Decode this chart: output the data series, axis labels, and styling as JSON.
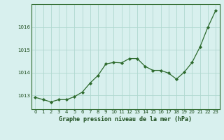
{
  "x": [
    0,
    1,
    2,
    3,
    4,
    5,
    6,
    7,
    8,
    9,
    10,
    11,
    12,
    13,
    14,
    15,
    16,
    17,
    18,
    19,
    20,
    21,
    22,
    23
  ],
  "y": [
    1012.92,
    1012.82,
    1012.72,
    1012.82,
    1012.82,
    1012.95,
    1013.15,
    1013.55,
    1013.88,
    1014.38,
    1014.45,
    1014.43,
    1014.62,
    1014.62,
    1014.28,
    1014.1,
    1014.1,
    1013.98,
    1013.72,
    1014.02,
    1014.45,
    1015.12,
    1015.98,
    1016.72
  ],
  "line_color": "#2d6a2d",
  "marker_color": "#2d6a2d",
  "bg_color": "#d8f0ee",
  "grid_color": "#b0d8d0",
  "axis_label_color": "#1a4a1a",
  "tick_label_color": "#1a4a1a",
  "xlabel": "Graphe pression niveau de la mer (hPa)",
  "ylim": [
    1012.4,
    1017.0
  ],
  "yticks": [
    1013,
    1014,
    1015,
    1016
  ],
  "xlim": [
    -0.5,
    23.5
  ],
  "xticks": [
    0,
    1,
    2,
    3,
    4,
    5,
    6,
    7,
    8,
    9,
    10,
    11,
    12,
    13,
    14,
    15,
    16,
    17,
    18,
    19,
    20,
    21,
    22,
    23
  ]
}
